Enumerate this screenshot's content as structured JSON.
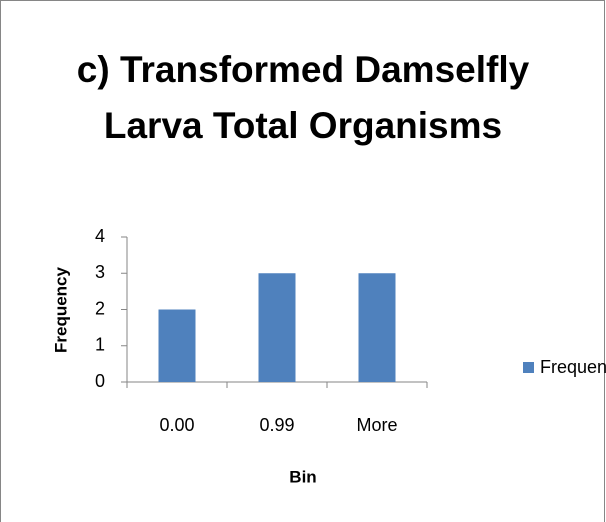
{
  "chart_data": {
    "type": "bar",
    "title": "c) Transformed Damselfly Larva Total Organisms",
    "categories": [
      "0.00",
      "0.99",
      "More"
    ],
    "series": [
      {
        "name": "Frequency",
        "color": "#4f81bd",
        "values": [
          2,
          3,
          3
        ]
      }
    ],
    "xlabel": "Bin",
    "ylabel": "Frequency",
    "ylim": [
      0,
      4
    ],
    "yticks": [
      0,
      1,
      2,
      3,
      4
    ],
    "grid": false,
    "legend": "right"
  }
}
